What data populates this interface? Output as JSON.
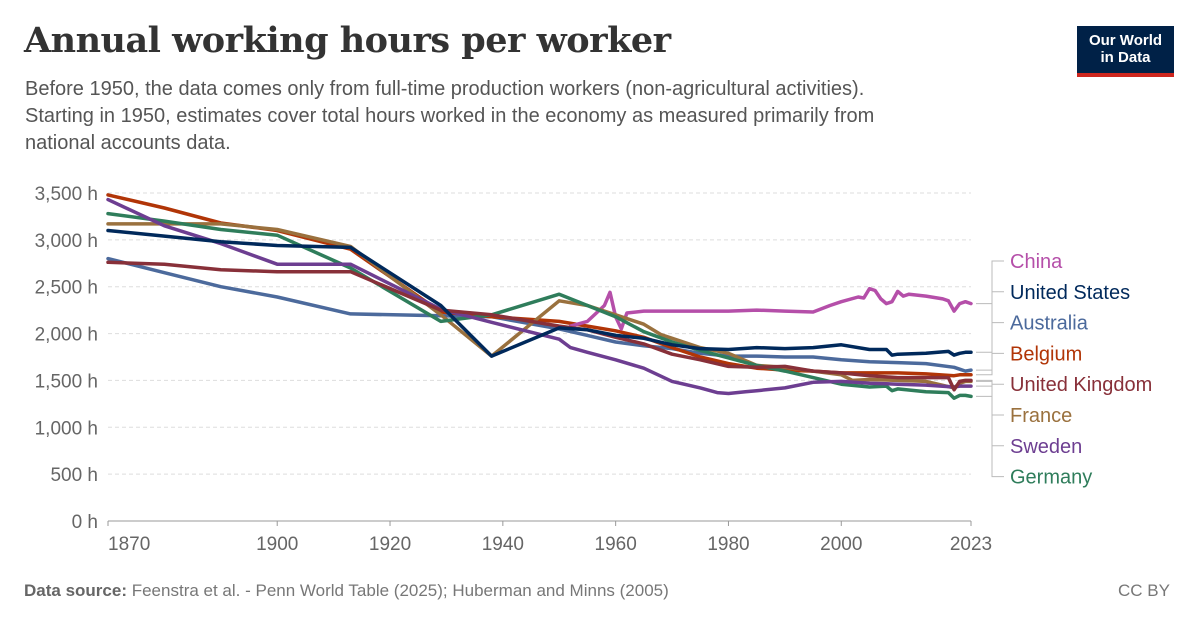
{
  "header": {
    "title": "Annual working hours per worker",
    "subtitle_lines": [
      "Before 1950, the data comes only from full-time production workers (non-agricultural activities).",
      "Starting in 1950, estimates cover total hours worked in the economy as measured primarily from",
      "national accounts data."
    ]
  },
  "logo": {
    "line1": "Our World",
    "line2": "in Data",
    "background": "#002147",
    "accent": "#ce261e"
  },
  "footer": {
    "source_label": "Data source:",
    "source_text": "Feenstra et al. - Penn World Table (2025); Huberman and Minns (2005)",
    "license": "CC BY"
  },
  "chart_data": {
    "type": "line",
    "title": "Annual working hours per worker",
    "xlabel": "",
    "ylabel": "",
    "xlim": [
      1870,
      2023
    ],
    "ylim": [
      0,
      3500
    ],
    "x_ticks": [
      1870,
      1900,
      1920,
      1940,
      1960,
      1980,
      2000,
      2023
    ],
    "x_tick_labels": [
      "1870",
      "1900",
      "1920",
      "1940",
      "1960",
      "1980",
      "2000",
      "2023"
    ],
    "y_ticks": [
      0,
      500,
      1000,
      1500,
      2000,
      2500,
      3000,
      3500
    ],
    "y_tick_labels": [
      "0 h",
      "500 h",
      "1,000 h",
      "1,500 h",
      "2,000 h",
      "2,500 h",
      "3,000 h",
      "3,500 h"
    ],
    "grid": "horizontal",
    "legend": "right",
    "series": [
      {
        "name": "Australia",
        "color": "#4c6a9c",
        "points": [
          [
            1870,
            2800
          ],
          [
            1880,
            2650
          ],
          [
            1890,
            2500
          ],
          [
            1900,
            2390
          ],
          [
            1913,
            2210
          ],
          [
            1929,
            2190
          ],
          [
            1938,
            2180
          ],
          [
            1950,
            2050
          ],
          [
            1955,
            1980
          ],
          [
            1960,
            1910
          ],
          [
            1965,
            1870
          ],
          [
            1970,
            1840
          ],
          [
            1975,
            1790
          ],
          [
            1980,
            1760
          ],
          [
            1985,
            1760
          ],
          [
            1990,
            1750
          ],
          [
            1995,
            1750
          ],
          [
            2000,
            1720
          ],
          [
            2005,
            1700
          ],
          [
            2010,
            1690
          ],
          [
            2015,
            1680
          ],
          [
            2020,
            1640
          ],
          [
            2021,
            1620
          ],
          [
            2022,
            1600
          ],
          [
            2023,
            1610
          ]
        ]
      },
      {
        "name": "Belgium",
        "color": "#b13507",
        "points": [
          [
            1870,
            3480
          ],
          [
            1880,
            3340
          ],
          [
            1890,
            3180
          ],
          [
            1900,
            3100
          ],
          [
            1913,
            2900
          ],
          [
            1929,
            2230
          ],
          [
            1938,
            2180
          ],
          [
            1950,
            2130
          ],
          [
            1955,
            2080
          ],
          [
            1960,
            2030
          ],
          [
            1965,
            1960
          ],
          [
            1970,
            1850
          ],
          [
            1975,
            1750
          ],
          [
            1980,
            1680
          ],
          [
            1985,
            1630
          ],
          [
            1990,
            1610
          ],
          [
            1995,
            1600
          ],
          [
            2000,
            1580
          ],
          [
            2005,
            1580
          ],
          [
            2010,
            1580
          ],
          [
            2015,
            1570
          ],
          [
            2020,
            1550
          ],
          [
            2021,
            1560
          ],
          [
            2022,
            1560
          ],
          [
            2023,
            1560
          ]
        ]
      },
      {
        "name": "China",
        "color": "#b54fa9",
        "points": [
          [
            1952,
            2080
          ],
          [
            1955,
            2130
          ],
          [
            1958,
            2300
          ],
          [
            1959,
            2440
          ],
          [
            1960,
            2180
          ],
          [
            1961,
            2050
          ],
          [
            1962,
            2220
          ],
          [
            1965,
            2240
          ],
          [
            1970,
            2240
          ],
          [
            1975,
            2240
          ],
          [
            1980,
            2240
          ],
          [
            1985,
            2250
          ],
          [
            1990,
            2240
          ],
          [
            1995,
            2230
          ],
          [
            1998,
            2300
          ],
          [
            2000,
            2340
          ],
          [
            2003,
            2390
          ],
          [
            2004,
            2380
          ],
          [
            2005,
            2480
          ],
          [
            2006,
            2460
          ],
          [
            2007,
            2370
          ],
          [
            2008,
            2320
          ],
          [
            2009,
            2340
          ],
          [
            2010,
            2450
          ],
          [
            2011,
            2400
          ],
          [
            2012,
            2420
          ],
          [
            2015,
            2400
          ],
          [
            2018,
            2370
          ],
          [
            2019,
            2350
          ],
          [
            2020,
            2240
          ],
          [
            2021,
            2320
          ],
          [
            2022,
            2340
          ],
          [
            2023,
            2320
          ]
        ]
      },
      {
        "name": "France",
        "color": "#9a713e",
        "points": [
          [
            1870,
            3170
          ],
          [
            1880,
            3170
          ],
          [
            1890,
            3170
          ],
          [
            1900,
            3110
          ],
          [
            1913,
            2930
          ],
          [
            1929,
            2200
          ],
          [
            1938,
            1760
          ],
          [
            1950,
            2350
          ],
          [
            1955,
            2300
          ],
          [
            1960,
            2200
          ],
          [
            1965,
            2100
          ],
          [
            1968,
            1990
          ],
          [
            1970,
            1950
          ],
          [
            1975,
            1850
          ],
          [
            1980,
            1790
          ],
          [
            1985,
            1660
          ],
          [
            1990,
            1640
          ],
          [
            1995,
            1600
          ],
          [
            2000,
            1560
          ],
          [
            2002,
            1500
          ],
          [
            2005,
            1510
          ],
          [
            2010,
            1500
          ],
          [
            2015,
            1490
          ],
          [
            2020,
            1420
          ],
          [
            2021,
            1470
          ],
          [
            2022,
            1490
          ],
          [
            2023,
            1490
          ]
        ]
      },
      {
        "name": "Germany",
        "color": "#2f7d5b",
        "points": [
          [
            1870,
            3280
          ],
          [
            1880,
            3200
          ],
          [
            1890,
            3110
          ],
          [
            1900,
            3050
          ],
          [
            1913,
            2700
          ],
          [
            1929,
            2130
          ],
          [
            1938,
            2200
          ],
          [
            1950,
            2420
          ],
          [
            1955,
            2300
          ],
          [
            1960,
            2180
          ],
          [
            1965,
            2020
          ],
          [
            1970,
            1910
          ],
          [
            1975,
            1820
          ],
          [
            1980,
            1740
          ],
          [
            1985,
            1660
          ],
          [
            1990,
            1600
          ],
          [
            1995,
            1530
          ],
          [
            2000,
            1460
          ],
          [
            2005,
            1430
          ],
          [
            2008,
            1440
          ],
          [
            2009,
            1390
          ],
          [
            2010,
            1410
          ],
          [
            2015,
            1380
          ],
          [
            2019,
            1370
          ],
          [
            2020,
            1310
          ],
          [
            2021,
            1340
          ],
          [
            2022,
            1340
          ],
          [
            2023,
            1330
          ]
        ]
      },
      {
        "name": "Sweden",
        "color": "#6d3e91",
        "points": [
          [
            1870,
            3430
          ],
          [
            1880,
            3150
          ],
          [
            1890,
            2960
          ],
          [
            1900,
            2740
          ],
          [
            1913,
            2740
          ],
          [
            1929,
            2260
          ],
          [
            1938,
            2120
          ],
          [
            1950,
            1940
          ],
          [
            1952,
            1850
          ],
          [
            1955,
            1800
          ],
          [
            1960,
            1720
          ],
          [
            1965,
            1630
          ],
          [
            1970,
            1490
          ],
          [
            1975,
            1420
          ],
          [
            1978,
            1370
          ],
          [
            1980,
            1360
          ],
          [
            1983,
            1380
          ],
          [
            1985,
            1390
          ],
          [
            1990,
            1420
          ],
          [
            1995,
            1480
          ],
          [
            2000,
            1490
          ],
          [
            2005,
            1470
          ],
          [
            2010,
            1460
          ],
          [
            2015,
            1450
          ],
          [
            2020,
            1430
          ],
          [
            2021,
            1440
          ],
          [
            2022,
            1440
          ],
          [
            2023,
            1440
          ]
        ]
      },
      {
        "name": "United Kingdom",
        "color": "#883039",
        "points": [
          [
            1870,
            2760
          ],
          [
            1880,
            2740
          ],
          [
            1890,
            2680
          ],
          [
            1900,
            2660
          ],
          [
            1913,
            2660
          ],
          [
            1929,
            2250
          ],
          [
            1938,
            2200
          ],
          [
            1950,
            2080
          ],
          [
            1955,
            2040
          ],
          [
            1960,
            1960
          ],
          [
            1965,
            1890
          ],
          [
            1970,
            1780
          ],
          [
            1975,
            1720
          ],
          [
            1980,
            1650
          ],
          [
            1985,
            1640
          ],
          [
            1990,
            1650
          ],
          [
            1995,
            1600
          ],
          [
            2000,
            1580
          ],
          [
            2005,
            1550
          ],
          [
            2010,
            1530
          ],
          [
            2015,
            1530
          ],
          [
            2019,
            1530
          ],
          [
            2020,
            1400
          ],
          [
            2021,
            1490
          ],
          [
            2022,
            1500
          ],
          [
            2023,
            1500
          ]
        ]
      },
      {
        "name": "United States",
        "color": "#00295b",
        "points": [
          [
            1870,
            3100
          ],
          [
            1880,
            3040
          ],
          [
            1890,
            2980
          ],
          [
            1900,
            2940
          ],
          [
            1913,
            2920
          ],
          [
            1929,
            2300
          ],
          [
            1938,
            1760
          ],
          [
            1950,
            2060
          ],
          [
            1955,
            2040
          ],
          [
            1960,
            1980
          ],
          [
            1965,
            1950
          ],
          [
            1970,
            1880
          ],
          [
            1975,
            1840
          ],
          [
            1980,
            1830
          ],
          [
            1985,
            1850
          ],
          [
            1990,
            1840
          ],
          [
            1995,
            1850
          ],
          [
            2000,
            1880
          ],
          [
            2005,
            1830
          ],
          [
            2008,
            1830
          ],
          [
            2009,
            1770
          ],
          [
            2010,
            1780
          ],
          [
            2015,
            1790
          ],
          [
            2019,
            1810
          ],
          [
            2020,
            1770
          ],
          [
            2021,
            1790
          ],
          [
            2022,
            1800
          ],
          [
            2023,
            1800
          ]
        ]
      }
    ],
    "legend_order": [
      "China",
      "United States",
      "Australia",
      "Belgium",
      "United Kingdom",
      "France",
      "Sweden",
      "Germany"
    ]
  }
}
